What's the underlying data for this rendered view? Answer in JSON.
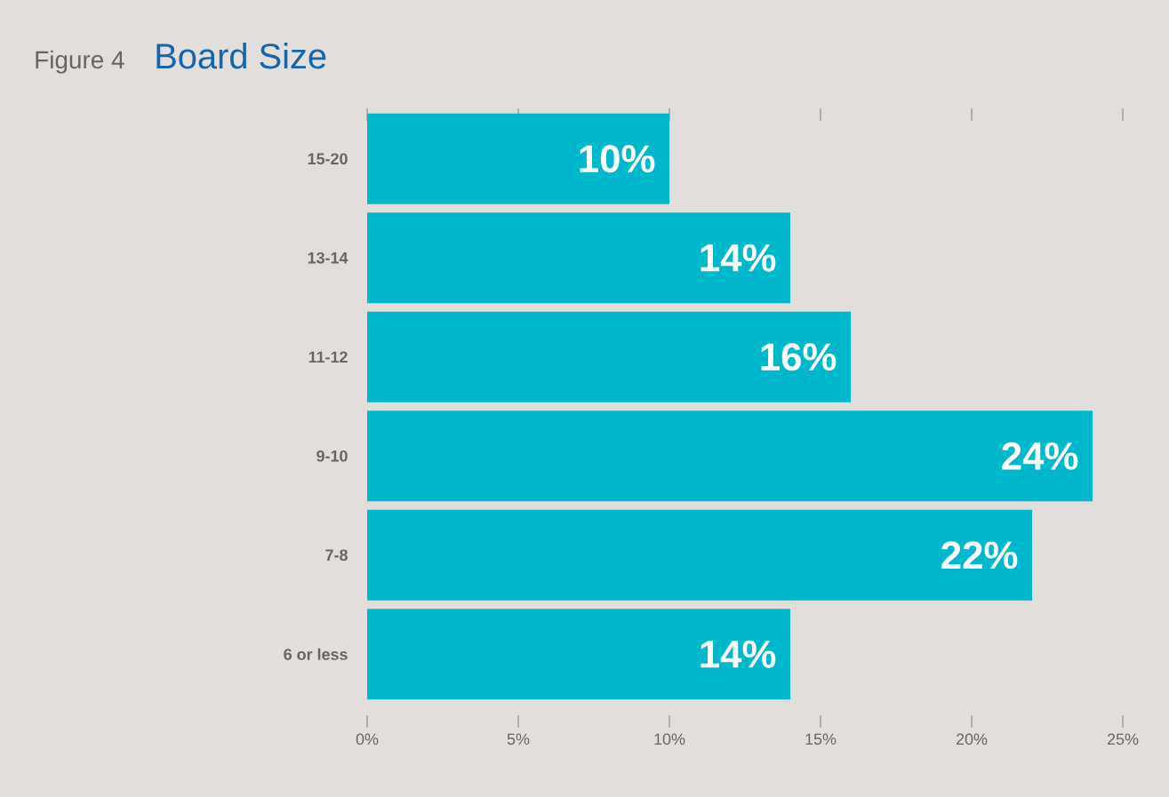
{
  "chart_data": {
    "type": "bar",
    "orientation": "horizontal",
    "title": "Board Size",
    "annotations": [
      "Figure 4"
    ],
    "categories": [
      "15-20",
      "13-14",
      "11-12",
      "9-10",
      "7-8",
      "6 or less"
    ],
    "values": [
      10,
      14,
      16,
      24,
      22,
      14
    ],
    "value_labels": [
      "10%",
      "14%",
      "16%",
      "24%",
      "22%",
      "14%"
    ],
    "color": "#00b8cc",
    "xlim": [
      0,
      25
    ],
    "xticks": [
      {
        "value": 0,
        "label": "0%"
      },
      {
        "value": 5,
        "label": "5%"
      },
      {
        "value": 10,
        "label": "10%"
      },
      {
        "value": 15,
        "label": "15%"
      },
      {
        "value": 20,
        "label": "20%"
      },
      {
        "value": 25,
        "label": "25%"
      }
    ],
    "grid": false
  }
}
